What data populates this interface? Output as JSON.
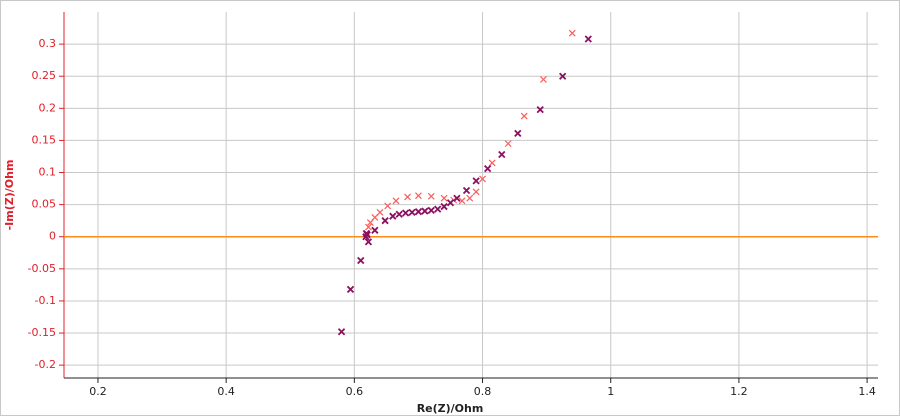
{
  "chart_data": {
    "type": "scatter",
    "x_label": "Re(Z)/Ohm",
    "y_label": "-Im(Z)/Ohm",
    "xlim": [
      0.147,
      1.417
    ],
    "ylim": [
      -0.22,
      0.35
    ],
    "xticks": [
      0.2,
      0.4,
      0.6,
      0.8,
      1,
      1.2,
      1.4
    ],
    "yticks": [
      -0.2,
      -0.15,
      -0.1,
      -0.05,
      0,
      0.05,
      0.1,
      0.15,
      0.2,
      0.25,
      0.3
    ],
    "grid": true,
    "reference_line": {
      "value": 0,
      "color": "#ff8c1a"
    },
    "series": [
      {
        "color": "#ff5a5a",
        "x": [
          0.58,
          0.594,
          0.61,
          0.618,
          0.622,
          0.625,
          0.632,
          0.64,
          0.652,
          0.665,
          0.683,
          0.7,
          0.72,
          0.74,
          0.755,
          0.768,
          0.78,
          0.79,
          0.8,
          0.815,
          0.84,
          0.865,
          0.895,
          0.94
        ],
        "values": [
          -0.148,
          -0.082,
          -0.037,
          0.005,
          0.015,
          0.022,
          0.03,
          0.038,
          0.048,
          0.056,
          0.062,
          0.064,
          0.063,
          0.06,
          0.057,
          0.056,
          0.06,
          0.07,
          0.09,
          0.115,
          0.145,
          0.188,
          0.245,
          0.317
        ]
      },
      {
        "color": "#8a1060",
        "x": [
          0.58,
          0.594,
          0.61,
          0.622,
          0.618,
          0.619,
          0.62,
          0.632,
          0.648,
          0.66,
          0.67,
          0.68,
          0.69,
          0.7,
          0.71,
          0.72,
          0.73,
          0.74,
          0.75,
          0.76,
          0.775,
          0.79,
          0.808,
          0.83,
          0.855,
          0.89,
          0.925,
          0.965
        ],
        "values": [
          -0.148,
          -0.082,
          -0.037,
          -0.008,
          0.0,
          0.005,
          0.003,
          0.01,
          0.025,
          0.032,
          0.035,
          0.037,
          0.038,
          0.039,
          0.04,
          0.041,
          0.043,
          0.047,
          0.053,
          0.06,
          0.072,
          0.087,
          0.106,
          0.128,
          0.161,
          0.198,
          0.25,
          0.308
        ]
      }
    ]
  }
}
